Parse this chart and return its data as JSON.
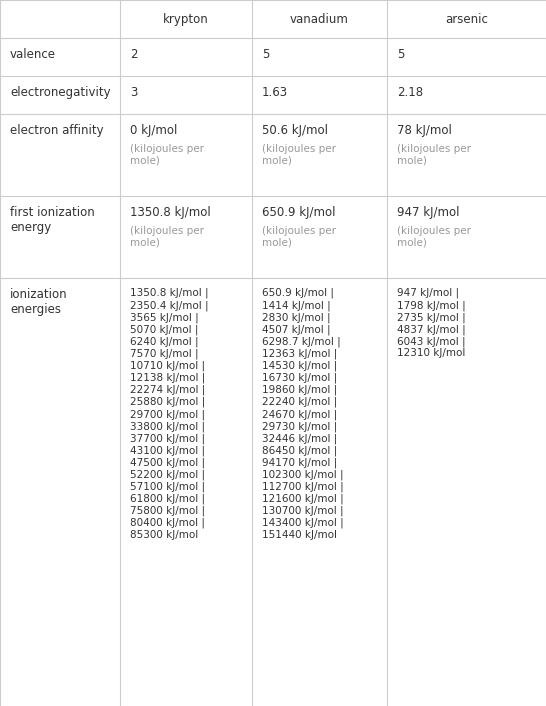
{
  "col_headers": [
    "",
    "krypton",
    "vanadium",
    "arsenic"
  ],
  "rows": [
    {
      "label": "valence",
      "krypton": "2",
      "vanadium": "5",
      "arsenic": "5"
    },
    {
      "label": "electronegativity",
      "krypton": "3",
      "vanadium": "1.63",
      "arsenic": "2.18"
    },
    {
      "label": "electron affinity",
      "krypton_main": "0 kJ/mol",
      "krypton_sub": "(kilojoules per\nmole)",
      "vanadium_main": "50.6 kJ/mol",
      "vanadium_sub": "(kilojoules per\nmole)",
      "arsenic_main": "78 kJ/mol",
      "arsenic_sub": "(kilojoules per\nmole)"
    },
    {
      "label": "first ionization\nenergy",
      "krypton_main": "1350.8 kJ/mol",
      "krypton_sub": "(kilojoules per\nmole)",
      "vanadium_main": "650.9 kJ/mol",
      "vanadium_sub": "(kilojoules per\nmole)",
      "arsenic_main": "947 kJ/mol",
      "arsenic_sub": "(kilojoules per\nmole)"
    },
    {
      "label": "ionization\nenergies",
      "krypton": "1350.8 kJ/mol | 2350.4 kJ/mol | 3565 kJ/mol | 5070 kJ/mol | 6240 kJ/mol | 7570 kJ/mol | 10710 kJ/mol | 12138 kJ/mol | 22274 kJ/mol | 25880 kJ/mol | 29700 kJ/mol | 33800 kJ/mol | 37700 kJ/mol | 43100 kJ/mol | 47500 kJ/mol | 52200 kJ/mol | 57100 kJ/mol | 61800 kJ/mol | 75800 kJ/mol | 80400 kJ/mol | 85300 kJ/mol",
      "vanadium": "650.9 kJ/mol | 1414 kJ/mol | 2830 kJ/mol | 4507 kJ/mol | 6298.7 kJ/mol | 12363 kJ/mol | 14530 kJ/mol | 16730 kJ/mol | 19860 kJ/mol | 22240 kJ/mol | 24670 kJ/mol | 29730 kJ/mol | 32446 kJ/mol | 86450 kJ/mol | 94170 kJ/mol | 102300 kJ/mol | 112700 kJ/mol | 121600 kJ/mol | 130700 kJ/mol | 143400 kJ/mol | 151440 kJ/mol",
      "arsenic": "947 kJ/mol | 1798 kJ/mol | 2735 kJ/mol | 4837 kJ/mol | 6043 kJ/mol | 12310 kJ/mol"
    }
  ],
  "grid_color": "#cccccc",
  "text_color": "#333333",
  "subtext_color": "#999999",
  "fig_width": 5.46,
  "fig_height": 7.06,
  "dpi": 100
}
